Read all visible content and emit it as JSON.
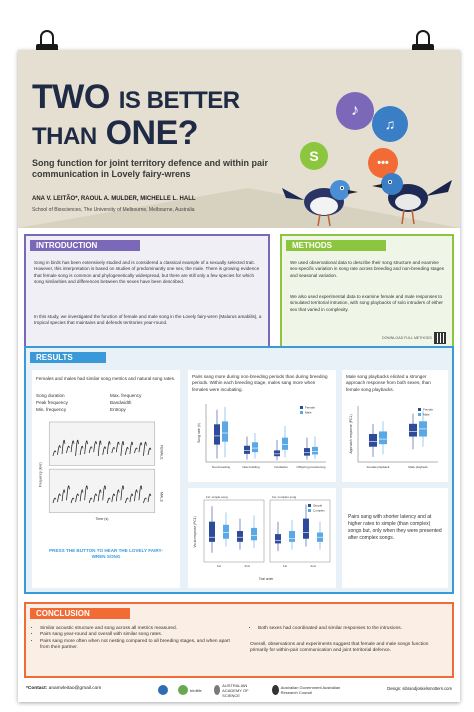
{
  "header": {
    "title_a": "TWO",
    "title_b": "IS BETTER",
    "title_c": "THAN",
    "title_d": "ONE?",
    "subtitle": "Song function for joint territory defence and within pair communication in Lovely fairy-wrens",
    "authors": "ANA V. LEITÃO*, RAOUL A. MULDER, MICHELLE L. HALL",
    "affiliation": "School of Biosciences, The University of Melbourne, Melbourne, Australia"
  },
  "introduction": {
    "heading": "INTRODUCTION",
    "para1": "Song in birds has been extensively studied and is considered a classical example of a sexually selected trait. However, this interpretation is based on studies of predominantly one sex, the male. There is growing evidence that female song is common and phylogenetically widespread, but there are still only a few species for which song similarities and differences between the sexes have been described.",
    "para2": "In this study, we investigated the function of female and male song in the Lovely fairy-wren (Malurus amabilis), a tropical species that maintains and defends territories year-round."
  },
  "methods": {
    "heading": "METHODS",
    "para1": "We used observational data to describe their song structure and examine sex-specific variation in song rate across breeding and non-breeding stages and seasonal variation.",
    "para2": "We also used experimental data to examine female and male responses to simulated territorial intrusion, with song playbacks of solo intruders of either sex that varied in complexity.",
    "download": "DOWNLOAD FULL METHODS"
  },
  "results": {
    "heading": "RESULTS",
    "p1_text": "Females and males had similar song metrics and natural song rates.",
    "metrics_left": [
      "Song duration",
      "Peak frequency",
      "Min. frequency"
    ],
    "metrics_right": [
      "Max. frequency",
      "Bandwidth",
      "Entropy"
    ],
    "spectro_female": "FEMALE",
    "spectro_male": "MALE",
    "spectro_ylabel": "Frequency (kHz)",
    "spectro_xlabel": "Time (s)",
    "press": "PRESS THE BUTTON TO HEAR THE LOVELY FAIRY-WREN SONG",
    "p2_text": "Pairs sang more during non-breeding periods than during breeding periods. Within each breeding stage, males sang more when females were incubating.",
    "p3_text": "Male song playbacks elicited a stronger approach response from both sexes, than female song playbacks.",
    "p5_text": "Pairs sang with shorter latency and at higher rates to simple (than complex) songs but, only when they were presented after complex songs."
  },
  "chart_data": [
    {
      "type": "box",
      "ylabel": "Song rate (h)",
      "categories": [
        "Non-breeding",
        "Nest building",
        "Incubation",
        "Offspring provisioning"
      ],
      "legend": [
        "Female",
        "Male"
      ],
      "series": [
        {
          "name": "Female",
          "median": [
            4.5,
            2.0,
            1.4,
            1.6
          ],
          "q1": [
            3.0,
            1.4,
            1.0,
            1.1
          ],
          "q3": [
            6.5,
            2.8,
            2.0,
            2.4
          ],
          "min": [
            0.6,
            0.4,
            0.3,
            0.4
          ],
          "max": [
            9.0,
            4.4,
            3.8,
            4.2
          ]
        },
        {
          "name": "Male",
          "median": [
            5.0,
            2.4,
            3.0,
            1.8
          ],
          "q1": [
            3.5,
            1.7,
            2.1,
            1.3
          ],
          "q3": [
            7.0,
            3.4,
            4.2,
            2.6
          ],
          "min": [
            0.8,
            0.6,
            0.8,
            0.5
          ],
          "max": [
            9.5,
            5.0,
            6.2,
            4.4
          ]
        }
      ],
      "ylim": [
        0,
        10
      ]
    },
    {
      "type": "box",
      "ylabel": "Approach response (PC1)",
      "categories": [
        "Female playback",
        "Male playback"
      ],
      "legend": [
        "Female",
        "Male"
      ],
      "series": [
        {
          "name": "Female",
          "median": [
            0.2,
            0.6
          ],
          "q1": [
            0.0,
            0.4
          ],
          "q3": [
            0.5,
            0.9
          ],
          "min": [
            -0.4,
            -0.1
          ],
          "max": [
            0.9,
            1.3
          ]
        },
        {
          "name": "Male",
          "median": [
            0.3,
            0.7
          ],
          "q1": [
            0.1,
            0.4
          ],
          "q3": [
            0.6,
            1.0
          ],
          "min": [
            -0.3,
            0.0
          ],
          "max": [
            1.0,
            1.4
          ]
        }
      ],
      "ylim": [
        -0.6,
        1.6
      ]
    },
    {
      "type": "box",
      "ylabel": "Vocal response (PC1)",
      "xlabel": "Trial order",
      "panels": [
        "1st: simple song",
        "1st: complex song"
      ],
      "categories": [
        "1st",
        "2nd"
      ],
      "legend": [
        "Simple",
        "Complex"
      ],
      "series": [
        {
          "name": "Panel A",
          "median": [
            0.6,
            0.9,
            0.6,
            0.7
          ],
          "q1": [
            0.3,
            0.5,
            0.3,
            0.4
          ],
          "q3": [
            1.6,
            1.4,
            1.0,
            1.2
          ],
          "min": [
            -0.4,
            0.0,
            -0.2,
            -0.1
          ],
          "max": [
            2.6,
            2.2,
            1.8,
            2.0
          ]
        },
        {
          "name": "Panel B",
          "median": [
            0.4,
            0.5,
            0.9,
            0.6
          ],
          "q1": [
            0.2,
            0.3,
            0.5,
            0.3
          ],
          "q3": [
            0.8,
            1.0,
            1.8,
            0.9
          ],
          "min": [
            -0.3,
            -0.2,
            0.0,
            -0.2
          ],
          "max": [
            1.6,
            1.7,
            2.7,
            1.6
          ]
        }
      ],
      "ylim": [
        -1,
        3
      ]
    }
  ],
  "conclusion": {
    "heading": "CONCLUSION",
    "bullets_left": [
      "Similar acoustic structure and song across all metrics measured.",
      "Pairs sang year-round and overall with similar song rates.",
      "Pairs sang more often when not nesting compared to all breeding stages, and when apart from their partner."
    ],
    "bullets_right": [
      "Both sexes had coordinated and similar responses to the intrusions."
    ],
    "para_right": "Overall, observations and experiments suggest that female and male songs function primarily for within-pair communication and joint territorial defence."
  },
  "footer": {
    "contact_label": "*Contact:",
    "contact_email": "anamvleitao@gmail.com",
    "design": "Design: sibrandjoskelsmotters.com",
    "logos": [
      "birdlife",
      "AUSTRALIAN ACADEMY OF SCIENCE",
      "Australian Government Australian Research Council"
    ]
  },
  "colors": {
    "intro": "#7b68b8",
    "methods": "#8cc63f",
    "results": "#3a9ad9",
    "conclusion": "#f26b35",
    "female": "#2e4a9a",
    "male": "#5aa9e6"
  }
}
